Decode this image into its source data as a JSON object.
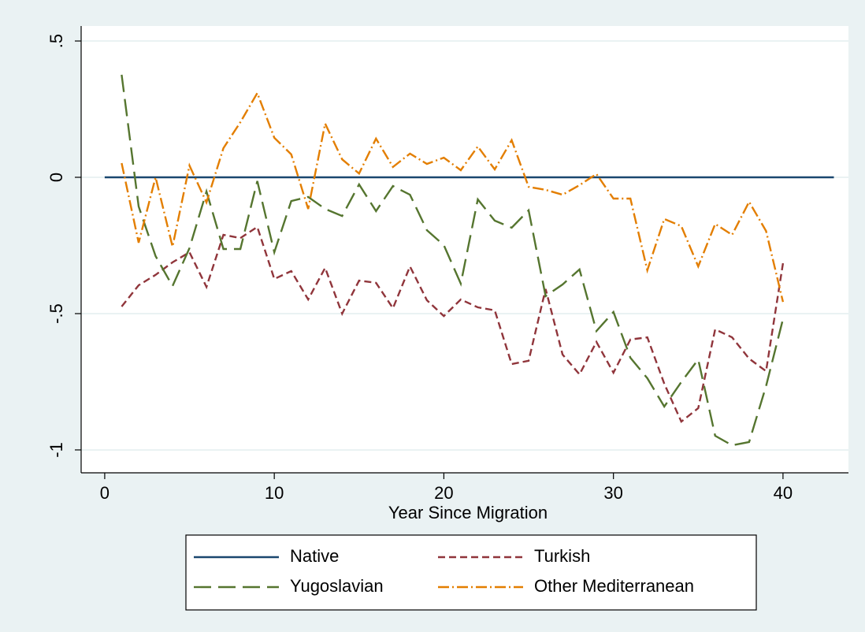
{
  "chart_data": {
    "type": "line",
    "xlabel": "Year Since Migration",
    "xlim": [
      -1.39,
      43.86
    ],
    "ylim": [
      -1.084,
      0.555
    ],
    "xticks": [
      0,
      10,
      20,
      30,
      40
    ],
    "yticks": [
      {
        "value": 0.5,
        "label": ".5"
      },
      0,
      {
        "value": -0.5,
        "label": "-.5"
      },
      -1
    ],
    "grid": true,
    "legend": "bottom",
    "series": [
      {
        "name": "Native",
        "color": "#1a476f",
        "line_style": "solid",
        "x": [
          0,
          43
        ],
        "values": [
          0,
          0
        ]
      },
      {
        "name": "Turkish",
        "color": "#90353b",
        "line_style": "dash",
        "x": [
          1,
          2,
          3,
          4,
          5,
          6,
          7,
          8,
          9,
          10,
          11,
          12,
          13,
          14,
          15,
          16,
          17,
          18,
          19,
          20,
          21,
          22,
          23,
          24,
          25,
          26,
          27,
          28,
          29,
          30,
          31,
          32,
          33,
          34,
          35,
          36,
          37,
          38,
          39,
          40
        ],
        "values": [
          -0.474,
          -0.396,
          -0.358,
          -0.312,
          -0.275,
          -0.402,
          -0.211,
          -0.223,
          -0.182,
          -0.373,
          -0.344,
          -0.448,
          -0.332,
          -0.5,
          -0.379,
          -0.387,
          -0.48,
          -0.327,
          -0.451,
          -0.509,
          -0.448,
          -0.477,
          -0.488,
          -0.685,
          -0.673,
          -0.41,
          -0.65,
          -0.723,
          -0.604,
          -0.717,
          -0.595,
          -0.587,
          -0.757,
          -0.896,
          -0.847,
          -0.558,
          -0.587,
          -0.665,
          -0.711,
          -0.315
        ]
      },
      {
        "name": "Yugoslavian",
        "color": "#55752f",
        "line_style": "longdash",
        "x": [
          1,
          2,
          3,
          4,
          5,
          6,
          7,
          8,
          9,
          10,
          11,
          12,
          13,
          14,
          15,
          16,
          17,
          18,
          19,
          20,
          21,
          22,
          23,
          24,
          25,
          26,
          27,
          28,
          29,
          30,
          31,
          32,
          33,
          34,
          35,
          36,
          37,
          38,
          39,
          40
        ],
        "values": [
          0.376,
          -0.107,
          -0.289,
          -0.399,
          -0.26,
          -0.052,
          -0.263,
          -0.263,
          -0.014,
          -0.275,
          -0.087,
          -0.072,
          -0.116,
          -0.142,
          -0.026,
          -0.124,
          -0.032,
          -0.064,
          -0.194,
          -0.249,
          -0.39,
          -0.081,
          -0.159,
          -0.185,
          -0.121,
          -0.436,
          -0.393,
          -0.338,
          -0.564,
          -0.494,
          -0.662,
          -0.737,
          -0.841,
          -0.751,
          -0.668,
          -0.948,
          -0.983,
          -0.971,
          -0.766,
          -0.52
        ]
      },
      {
        "name": "Other Mediterranean",
        "color": "#e37e00",
        "line_style": "dashdot",
        "x": [
          1,
          2,
          3,
          4,
          5,
          6,
          7,
          8,
          9,
          10,
          11,
          12,
          13,
          14,
          15,
          16,
          17,
          18,
          19,
          20,
          21,
          22,
          23,
          24,
          25,
          26,
          27,
          28,
          29,
          30,
          31,
          32,
          33,
          34,
          35,
          36,
          37,
          38,
          39,
          40
        ],
        "values": [
          0.052,
          -0.24,
          0,
          -0.254,
          0.043,
          -0.092,
          0.107,
          0.202,
          0.309,
          0.145,
          0.084,
          -0.116,
          0.197,
          0.066,
          0.014,
          0.142,
          0.038,
          0.087,
          0.049,
          0.072,
          0.026,
          0.113,
          0.029,
          0.136,
          -0.035,
          -0.046,
          -0.064,
          -0.029,
          0.012,
          -0.078,
          -0.078,
          -0.341,
          -0.153,
          -0.179,
          -0.327,
          -0.171,
          -0.211,
          -0.09,
          -0.197,
          -0.457
        ]
      }
    ]
  }
}
